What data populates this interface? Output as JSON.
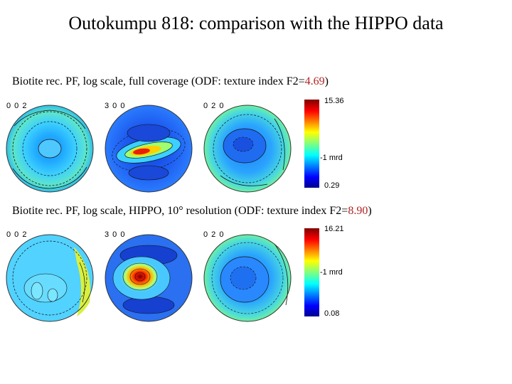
{
  "title": "Outokumpu 818: comparison with the HIPPO data",
  "panels": [
    {
      "caption_prefix": "Biotite rec. PF, log scale, full coverage (ODF: texture index F2=",
      "texture_index": "4.69",
      "caption_suffix": ")",
      "pole_figures": [
        "0 0 2",
        "3 0 0",
        "0 2 0"
      ],
      "colorbar": {
        "max": "15.36",
        "mid": "1 mrd",
        "min": "0.29"
      }
    },
    {
      "caption_prefix": "Biotite rec. PF, log scale, HIPPO, 10° resolution (ODF: texture index F2=",
      "texture_index": "8.90",
      "caption_suffix": ")",
      "pole_figures": [
        "0 0 2",
        "3 0 0",
        "0 2 0"
      ],
      "colorbar": {
        "max": "16.21",
        "mid": "1 mrd",
        "min": "0.08"
      }
    }
  ],
  "colors": {
    "accent_red": "#b22222"
  }
}
